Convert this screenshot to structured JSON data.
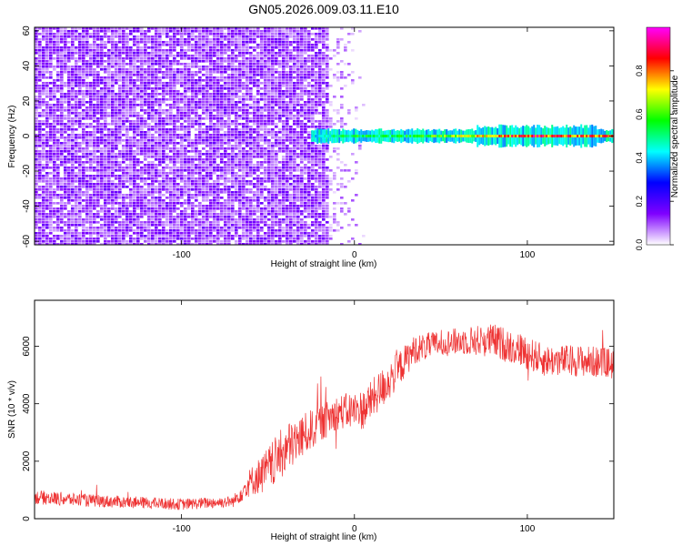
{
  "figure": {
    "title": "GN05.2026.009.03.11.E10"
  },
  "chart_data": [
    {
      "type": "heatmap",
      "xlabel": "Height of straight line (km)",
      "ylabel": "Frequency (Hz)",
      "xlim": [
        -185,
        150
      ],
      "ylim": [
        -62,
        62
      ],
      "x_ticks": [
        -100,
        0,
        100
      ],
      "x_tick_labels": [
        "-100",
        "0",
        "100"
      ],
      "y_ticks": [
        -60,
        -40,
        -20,
        0,
        20,
        40,
        60
      ],
      "y_tick_labels": [
        "-60",
        "-40",
        "-20",
        "0",
        "20",
        "40",
        "60"
      ],
      "noise_region_x": [
        -185,
        -15
      ],
      "signal_band": {
        "x_start": -25,
        "x_end": 150,
        "center_frequency": 0,
        "half_width_hz": 3,
        "amplitude_profile": [
          {
            "x": -25,
            "amp": 0.42
          },
          {
            "x": 0,
            "amp": 0.55
          },
          {
            "x": 20,
            "amp": 0.5
          },
          {
            "x": 50,
            "amp": 0.6
          },
          {
            "x": 80,
            "amp": 0.75
          },
          {
            "x": 100,
            "amp": 0.85
          },
          {
            "x": 120,
            "amp": 0.8
          },
          {
            "x": 150,
            "amp": 0.8
          }
        ]
      },
      "colorbar": {
        "label": "Normalized spectral amplitude",
        "range": [
          0,
          1
        ],
        "ticks": [
          0.0,
          0.2,
          0.4,
          0.6,
          0.8
        ],
        "tick_labels": [
          "0.0",
          "0.2",
          "0.4",
          "0.6",
          "0.8"
        ],
        "colors": [
          "#ffffff",
          "#7f00ff",
          "#0000ff",
          "#00ffff",
          "#00ff00",
          "#ffff00",
          "#ff0000",
          "#ff00ff"
        ]
      }
    },
    {
      "type": "line",
      "xlabel": "Height of straight line (km)",
      "ylabel": "SNR (10 * v/v)",
      "xlim": [
        -185,
        150
      ],
      "ylim": [
        0,
        7600
      ],
      "x_ticks": [
        -100,
        0,
        100
      ],
      "x_tick_labels": [
        "-100",
        "0",
        "100"
      ],
      "y_ticks": [
        0,
        2000,
        4000,
        6000
      ],
      "y_tick_labels": [
        "0",
        "2000",
        "4000",
        "6000"
      ],
      "color": "#ee3333",
      "series_envelope": [
        {
          "x": -185,
          "y": 750,
          "spread": 250
        },
        {
          "x": -150,
          "y": 620,
          "spread": 220
        },
        {
          "x": -100,
          "y": 500,
          "spread": 200
        },
        {
          "x": -70,
          "y": 600,
          "spread": 200
        },
        {
          "x": -60,
          "y": 1300,
          "spread": 500
        },
        {
          "x": -50,
          "y": 1700,
          "spread": 800
        },
        {
          "x": -40,
          "y": 2400,
          "spread": 900
        },
        {
          "x": -25,
          "y": 3100,
          "spread": 700
        },
        {
          "x": -10,
          "y": 3700,
          "spread": 600
        },
        {
          "x": 5,
          "y": 3800,
          "spread": 700
        },
        {
          "x": 20,
          "y": 4800,
          "spread": 700
        },
        {
          "x": 35,
          "y": 5900,
          "spread": 500
        },
        {
          "x": 50,
          "y": 6100,
          "spread": 450
        },
        {
          "x": 65,
          "y": 6200,
          "spread": 500
        },
        {
          "x": 80,
          "y": 6200,
          "spread": 600
        },
        {
          "x": 95,
          "y": 5900,
          "spread": 600
        },
        {
          "x": 110,
          "y": 5500,
          "spread": 550
        },
        {
          "x": 130,
          "y": 5500,
          "spread": 550
        },
        {
          "x": 150,
          "y": 5400,
          "spread": 550
        }
      ]
    }
  ]
}
